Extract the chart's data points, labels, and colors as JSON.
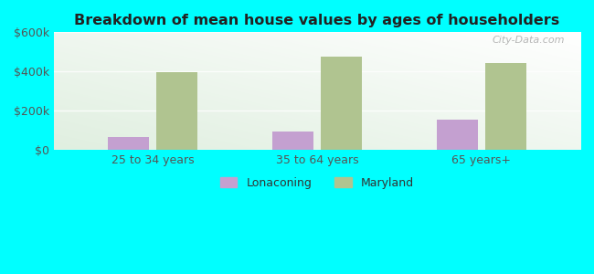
{
  "title": "Breakdown of mean house values by ages of householders",
  "categories": [
    "25 to 34 years",
    "35 to 64 years",
    "65 years+"
  ],
  "lonaconing_values": [
    65000,
    95000,
    155000
  ],
  "maryland_values": [
    395000,
    475000,
    445000
  ],
  "ylim": [
    0,
    600000
  ],
  "yticks": [
    0,
    200000,
    400000,
    600000
  ],
  "ytick_labels": [
    "$0",
    "$200k",
    "$400k",
    "$600k"
  ],
  "lonaconing_color": "#c4a0d0",
  "maryland_color": "#b0c490",
  "background_color": "#00ffff",
  "bar_width": 0.25,
  "legend_labels": [
    "Lonaconing",
    "Maryland"
  ],
  "watermark": "City-Data.com"
}
